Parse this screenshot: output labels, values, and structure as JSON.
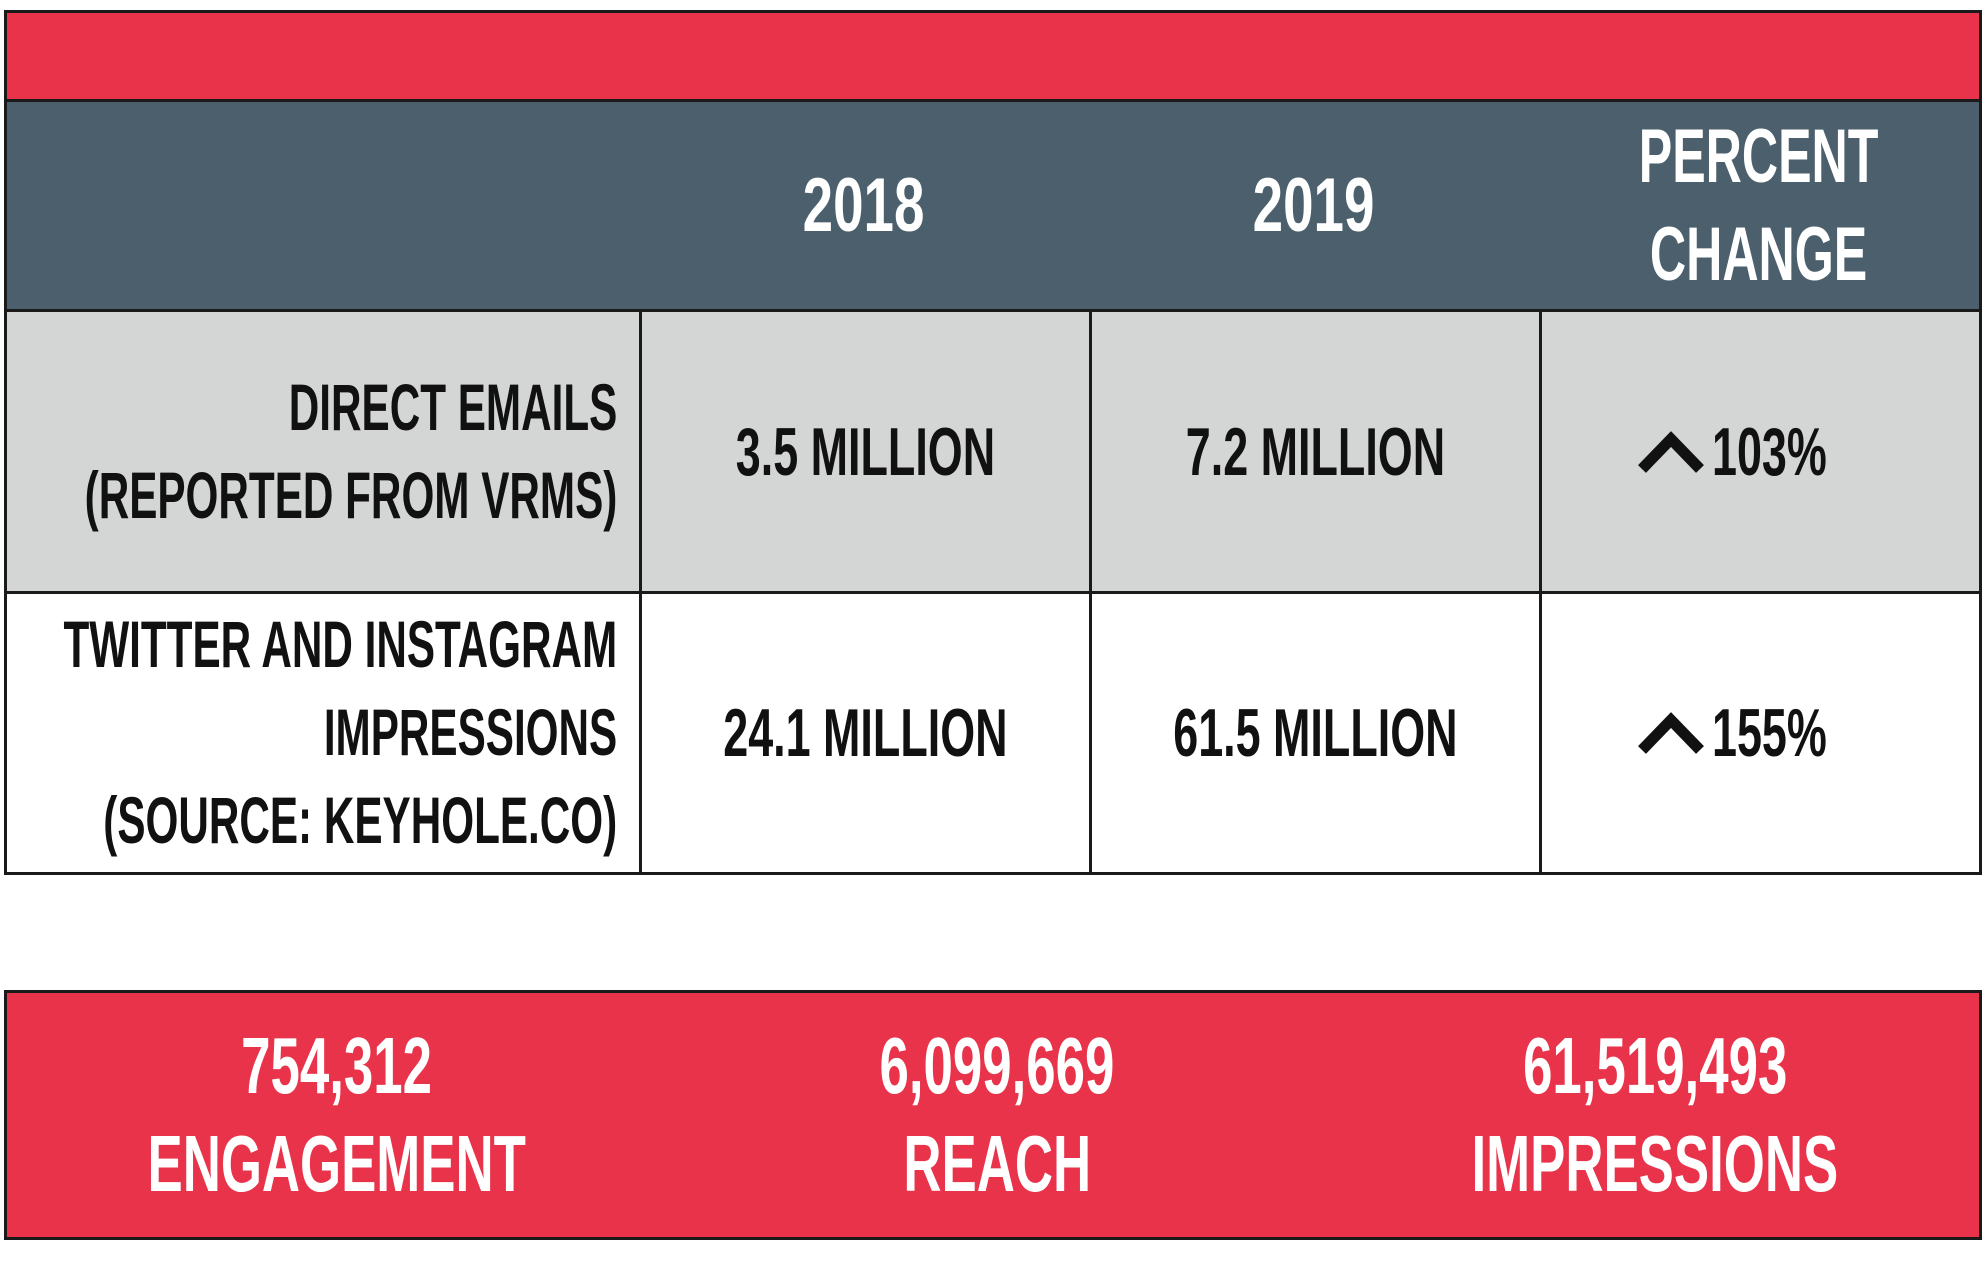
{
  "colors": {
    "accent_red": "#e8334a",
    "header_slate": "#4c5f6c",
    "row_gray": "#d4d5d5",
    "text_dark": "#111111",
    "text_light": "#ffffff"
  },
  "chart_data": {
    "type": "table",
    "columns": [
      "",
      "2018",
      "2019",
      "PERCENT CHANGE"
    ],
    "header": {
      "col_2018": "2018",
      "col_2019": "2019",
      "percent_change_line1": "PERCENT",
      "percent_change_line2": "CHANGE"
    },
    "rows": [
      {
        "label_lines": [
          "DIRECT EMAILS",
          "(REPORTED FROM VRMs)"
        ],
        "v2018": "3.5 MILLION",
        "v2019": "7.2 MILLION",
        "change": "103%",
        "direction": "up",
        "direction_icon": "caret-up-icon"
      },
      {
        "label_lines": [
          "TWITTER AND INSTAGRAM",
          "IMPRESSIONS",
          "(SOURCE: KEYHOLE.CO)"
        ],
        "v2018": "24.1 MILLION",
        "v2019": "61.5 MILLION",
        "change": "155%",
        "direction": "up",
        "direction_icon": "caret-up-icon"
      }
    ],
    "summary": [
      {
        "value": "754,312",
        "label": "ENGAGEMENT"
      },
      {
        "value": "6,099,669",
        "label": "REACH"
      },
      {
        "value": "61,519,493",
        "label": "IMPRESSIONS"
      }
    ]
  }
}
